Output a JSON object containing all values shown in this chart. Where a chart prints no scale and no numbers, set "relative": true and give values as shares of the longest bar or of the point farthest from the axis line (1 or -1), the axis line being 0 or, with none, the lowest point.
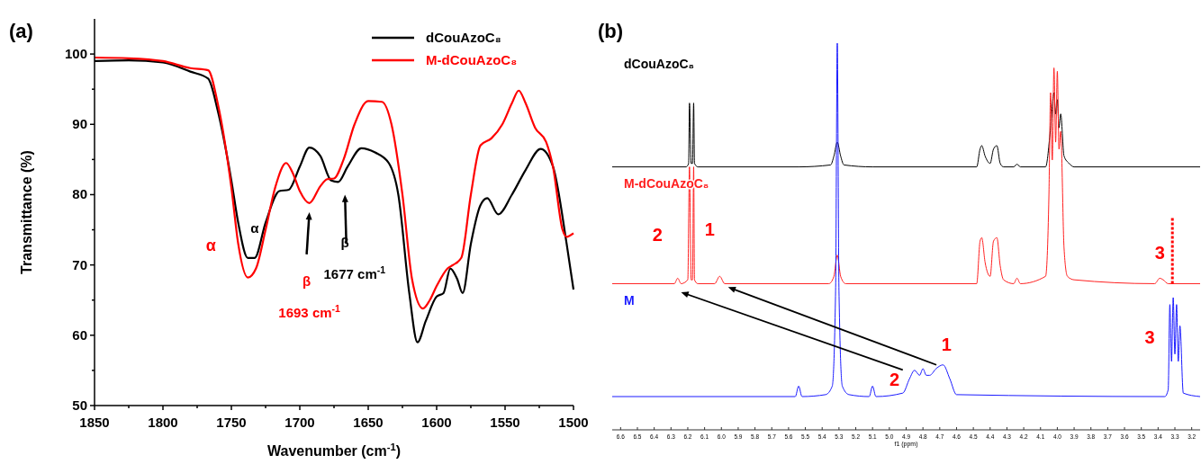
{
  "chart_data": [
    {
      "type": "line",
      "title": "(a)",
      "xlabel": "Wavenumber (cm$^{-1}$)",
      "ylabel": "Transmittance (%)",
      "xlim": [
        1850,
        1500
      ],
      "xticks": [
        1850,
        {
          "value": 1825,
          "label": null
        },
        1800,
        {
          "value": 1775,
          "label": null
        },
        1750,
        {
          "value": 1725,
          "label": null
        },
        1700,
        {
          "value": 1675,
          "label": null
        },
        1650,
        {
          "value": 1625,
          "label": null
        },
        1600,
        {
          "value": 1575,
          "label": null
        },
        1550,
        {
          "value": 1525,
          "label": null
        },
        1500
      ],
      "ylim": [
        50,
        105
      ],
      "yticks": [
        50,
        {
          "value": 55,
          "label": null
        },
        60,
        {
          "value": 65,
          "label": null
        },
        70,
        {
          "value": 75,
          "label": null
        },
        80,
        {
          "value": 85,
          "label": null
        },
        90,
        {
          "value": 95,
          "label": null
        },
        100
      ],
      "legend": "top right",
      "series": [
        {
          "name": "dCouAzoC₈",
          "color": "#000000",
          "x": [
            1850,
            1825,
            1800,
            1780,
            1767,
            1760,
            1750,
            1745,
            1738,
            1733,
            1725,
            1715,
            1708,
            1700,
            1693,
            1685,
            1677,
            1672,
            1665,
            1655,
            1645,
            1635,
            1628,
            1620,
            1614,
            1608,
            1600,
            1595,
            1590,
            1585,
            1581,
            1575,
            1568,
            1563,
            1555,
            1545,
            1535,
            1524,
            1515,
            1505,
            1500
          ],
          "values": [
            99,
            99.1,
            98.8,
            97.5,
            96.5,
            92,
            82,
            76,
            71,
            71,
            76,
            80.5,
            80.7,
            84,
            86.7,
            85.5,
            82,
            81.8,
            84,
            86.6,
            86,
            84.5,
            80,
            66,
            59,
            62,
            65.5,
            66,
            69.5,
            68,
            66,
            73,
            78.5,
            79.5,
            77.2,
            80,
            83.5,
            86.5,
            84,
            73,
            66.5
          ]
        },
        {
          "name": "M-dCouAzoC₈",
          "color": "#ff0000",
          "x": [
            1850,
            1825,
            1800,
            1780,
            1767,
            1760,
            1750,
            1745,
            1738,
            1732,
            1725,
            1718,
            1710,
            1705,
            1700,
            1693,
            1685,
            1680,
            1675,
            1668,
            1660,
            1650,
            1640,
            1633,
            1625,
            1618,
            1610,
            1605,
            1600,
            1592,
            1588,
            1582,
            1575,
            1568,
            1560,
            1552,
            1545,
            1540,
            1535,
            1528,
            1520,
            1515,
            1508,
            1505,
            1500
          ],
          "values": [
            99.5,
            99.4,
            99,
            98,
            97.7,
            93,
            81,
            73,
            68.2,
            69.5,
            75,
            81,
            84.5,
            83,
            80.5,
            78.8,
            81.2,
            82.2,
            82.3,
            85,
            90,
            93.3,
            93.2,
            90,
            80,
            68,
            63.8,
            65,
            67,
            69.5,
            70,
            71,
            80,
            87,
            88,
            90,
            93,
            94.8,
            93,
            89.5,
            87.5,
            84,
            75,
            74,
            74.5
          ]
        }
      ],
      "annotations": [
        "α",
        "α",
        "β",
        "1693 cm$^{-1}$",
        "β",
        "1677 cm$^{-1}$"
      ]
    },
    {
      "type": "line",
      "title": "(b)",
      "xlabel": "f1 (ppm)",
      "relative": true,
      "tick_labels": "x",
      "xlim": [
        6.65,
        3.15
      ],
      "xticks": [
        6.6,
        6.5,
        6.4,
        6.3,
        6.2,
        6.1,
        {
          "value": 6,
          "label": "6.0"
        },
        5.9,
        5.8,
        5.7,
        5.6,
        5.5,
        5.4,
        5.3,
        5.2,
        5.1,
        {
          "value": 5,
          "label": "5.0"
        },
        4.9,
        4.8,
        4.7,
        4.6,
        4.5,
        4.4,
        4.3,
        4.2,
        4.1,
        {
          "value": 4,
          "label": "4.0"
        },
        3.9,
        3.8,
        3.7,
        3.6,
        3.5,
        3.4,
        3.3,
        3.2
      ],
      "series": [
        {
          "name": "dCouAzoC₈",
          "color": "#000000",
          "x": [
            6.65,
            6.21,
            6.195,
            6.19,
            6.18,
            6.172,
            6.165,
            6.16,
            6.14,
            5.54,
            5.35,
            5.33,
            5.31,
            5.29,
            5.27,
            5.1,
            4.48,
            4.46,
            4.45,
            4.43,
            4.4,
            4.38,
            4.36,
            4.34,
            4.32,
            4.26,
            4.24,
            4.22,
            4.07,
            4.04,
            4.02,
            4.01,
            4.0,
            3.99,
            3.98,
            3.96,
            3.93,
            3.9,
            3.15
          ],
          "values": [
            0.68,
            0.68,
            0.689,
            0.845,
            0.689,
            0.689,
            0.845,
            0.689,
            0.68,
            0.68,
            0.685,
            0.708,
            0.744,
            0.708,
            0.685,
            0.68,
            0.68,
            0.726,
            0.735,
            0.708,
            0.689,
            0.726,
            0.735,
            0.689,
            0.68,
            0.68,
            0.687,
            0.68,
            0.68,
            0.781,
            0.872,
            0.817,
            0.854,
            0.781,
            0.817,
            0.708,
            0.689,
            0.68,
            0.68
          ]
        },
        {
          "name": "M-dCouAzoC₈",
          "color": "#ff2020",
          "x": [
            6.65,
            6.28,
            6.26,
            6.24,
            6.2,
            6.19,
            6.18,
            6.172,
            6.165,
            6.16,
            6.14,
            6.04,
            6.01,
            5.98,
            5.36,
            5.33,
            5.31,
            5.29,
            5.26,
            4.48,
            4.46,
            4.45,
            4.43,
            4.4,
            4.38,
            4.36,
            4.34,
            4.32,
            4.26,
            4.24,
            4.22,
            4.07,
            4.05,
            4.04,
            4.03,
            4.02,
            4.01,
            4.0,
            3.99,
            3.98,
            3.96,
            3.94,
            3.9,
            3.42,
            3.39,
            3.37,
            3.34,
            3.15
          ],
          "values": [
            0.378,
            0.378,
            0.392,
            0.378,
            0.388,
            0.68,
            0.388,
            0.388,
            0.68,
            0.388,
            0.378,
            0.378,
            0.397,
            0.378,
            0.378,
            0.397,
            0.452,
            0.397,
            0.378,
            0.378,
            0.488,
            0.497,
            0.433,
            0.397,
            0.488,
            0.497,
            0.424,
            0.388,
            0.378,
            0.392,
            0.378,
            0.397,
            0.607,
            0.872,
            0.698,
            0.936,
            0.744,
            0.927,
            0.726,
            0.772,
            0.47,
            0.397,
            0.388,
            0.378,
            0.392,
            0.388,
            0.378,
            0.378
          ]
        },
        {
          "name": "M",
          "color": "#1a1aff",
          "x": [
            6.65,
            5.56,
            5.54,
            5.52,
            5.38,
            5.34,
            5.32,
            5.31,
            5.3,
            5.28,
            5.24,
            5.12,
            5.1,
            5.08,
            4.92,
            4.88,
            4.85,
            4.82,
            4.8,
            4.78,
            4.76,
            4.72,
            4.68,
            4.64,
            4.6,
            3.36,
            3.34,
            3.33,
            3.32,
            3.31,
            3.3,
            3.29,
            3.28,
            3.27,
            3.25,
            3.15
          ],
          "values": [
            0.086,
            0.086,
            0.113,
            0.086,
            0.091,
            0.113,
            0.36,
            1,
            0.36,
            0.113,
            0.091,
            0.086,
            0.113,
            0.086,
            0.095,
            0.132,
            0.154,
            0.141,
            0.158,
            0.141,
            0.141,
            0.159,
            0.168,
            0.132,
            0.091,
            0.086,
            0.104,
            0.324,
            0.177,
            0.342,
            0.196,
            0.324,
            0.177,
            0.269,
            0.095,
            0.086
          ]
        }
      ],
      "annotations": [
        "2",
        "1",
        "3",
        "1",
        "2",
        "3"
      ]
    }
  ]
}
